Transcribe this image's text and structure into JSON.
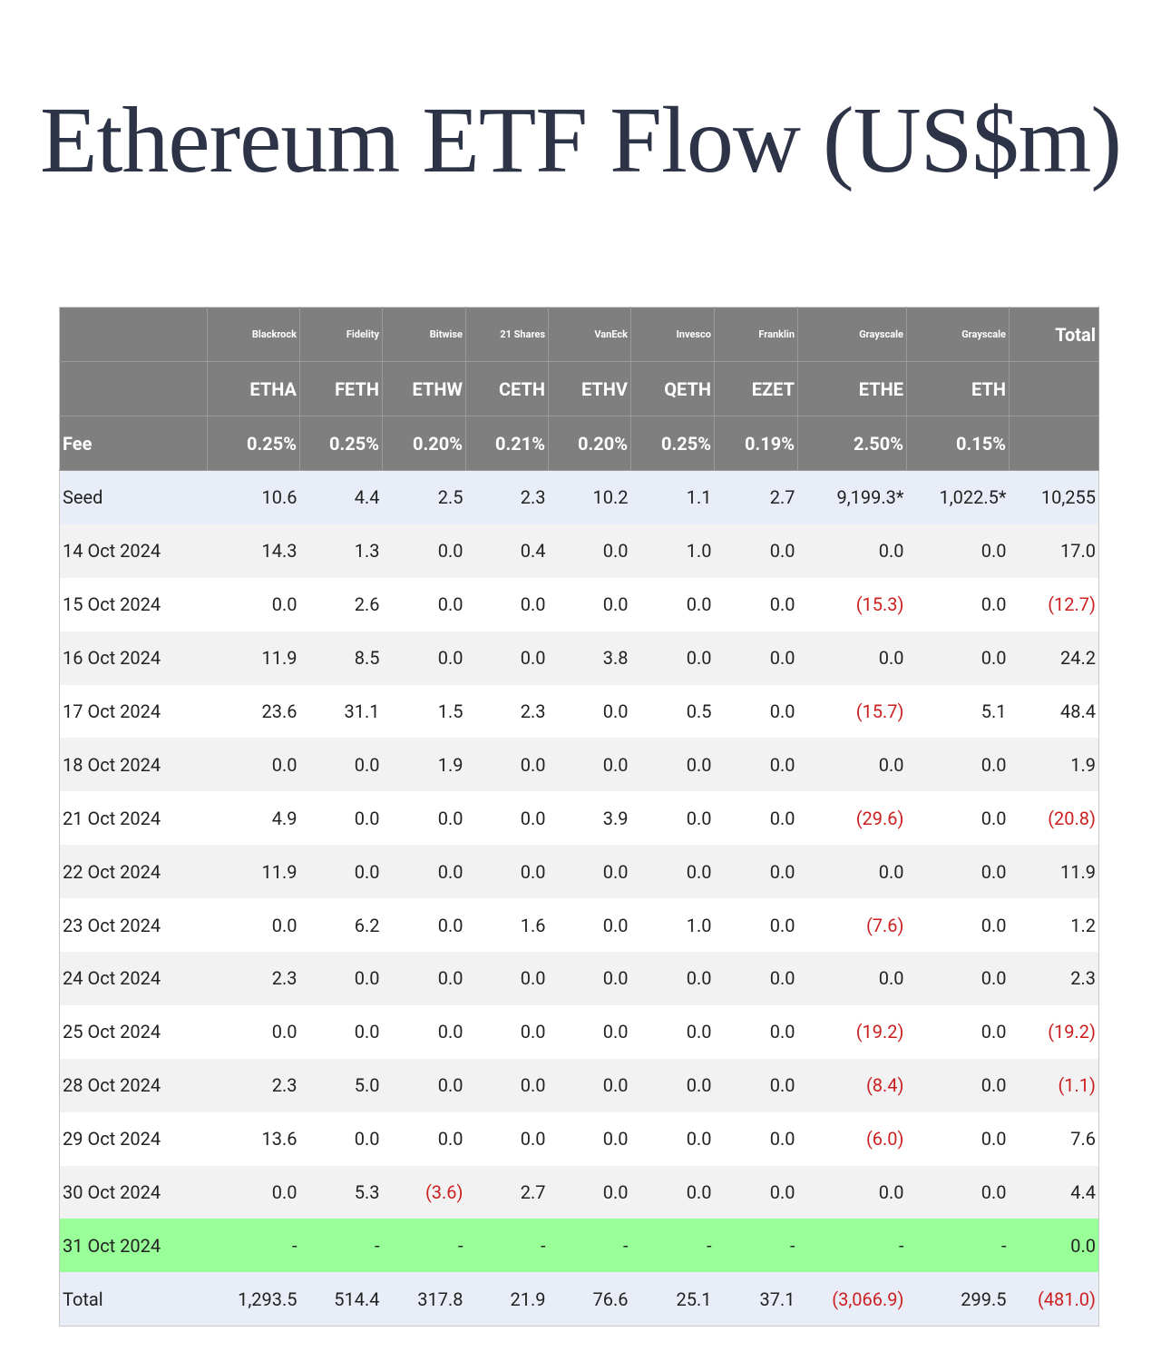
{
  "title": "Ethereum ETF Flow (US$m)",
  "table": {
    "issuers": [
      "Blackrock",
      "Fidelity",
      "Bitwise",
      "21 Shares",
      "VanEck",
      "Invesco",
      "Franklin",
      "Grayscale",
      "Grayscale"
    ],
    "total_header": "Total",
    "tickers": [
      "ETHA",
      "FETH",
      "ETHW",
      "CETH",
      "ETHV",
      "QETH",
      "EZET",
      "ETHE",
      "ETH"
    ],
    "fee_label": "Fee",
    "fees": [
      "0.25%",
      "0.25%",
      "0.20%",
      "0.21%",
      "0.20%",
      "0.25%",
      "0.19%",
      "2.50%",
      "0.15%"
    ],
    "rows": [
      [
        "Seed",
        "10.6",
        "4.4",
        "2.5",
        "2.3",
        "10.2",
        "1.1",
        "2.7",
        "9,199.3*",
        "1,022.5*",
        "10,255"
      ],
      [
        "14 Oct 2024",
        "14.3",
        "1.3",
        "0.0",
        "0.4",
        "0.0",
        "1.0",
        "0.0",
        "0.0",
        "0.0",
        "17.0"
      ],
      [
        "15 Oct 2024",
        "0.0",
        "2.6",
        "0.0",
        "0.0",
        "0.0",
        "0.0",
        "0.0",
        "(15.3)",
        "0.0",
        "(12.7)"
      ],
      [
        "16 Oct 2024",
        "11.9",
        "8.5",
        "0.0",
        "0.0",
        "3.8",
        "0.0",
        "0.0",
        "0.0",
        "0.0",
        "24.2"
      ],
      [
        "17 Oct 2024",
        "23.6",
        "31.1",
        "1.5",
        "2.3",
        "0.0",
        "0.5",
        "0.0",
        "(15.7)",
        "5.1",
        "48.4"
      ],
      [
        "18 Oct 2024",
        "0.0",
        "0.0",
        "1.9",
        "0.0",
        "0.0",
        "0.0",
        "0.0",
        "0.0",
        "0.0",
        "1.9"
      ],
      [
        "21 Oct 2024",
        "4.9",
        "0.0",
        "0.0",
        "0.0",
        "3.9",
        "0.0",
        "0.0",
        "(29.6)",
        "0.0",
        "(20.8)"
      ],
      [
        "22 Oct 2024",
        "11.9",
        "0.0",
        "0.0",
        "0.0",
        "0.0",
        "0.0",
        "0.0",
        "0.0",
        "0.0",
        "11.9"
      ],
      [
        "23 Oct 2024",
        "0.0",
        "6.2",
        "0.0",
        "1.6",
        "0.0",
        "1.0",
        "0.0",
        "(7.6)",
        "0.0",
        "1.2"
      ],
      [
        "24 Oct 2024",
        "2.3",
        "0.0",
        "0.0",
        "0.0",
        "0.0",
        "0.0",
        "0.0",
        "0.0",
        "0.0",
        "2.3"
      ],
      [
        "25 Oct 2024",
        "0.0",
        "0.0",
        "0.0",
        "0.0",
        "0.0",
        "0.0",
        "0.0",
        "(19.2)",
        "0.0",
        "(19.2)"
      ],
      [
        "28 Oct 2024",
        "2.3",
        "5.0",
        "0.0",
        "0.0",
        "0.0",
        "0.0",
        "0.0",
        "(8.4)",
        "0.0",
        "(1.1)"
      ],
      [
        "29 Oct 2024",
        "13.6",
        "0.0",
        "0.0",
        "0.0",
        "0.0",
        "0.0",
        "0.0",
        "(6.0)",
        "0.0",
        "7.6"
      ],
      [
        "30 Oct 2024",
        "0.0",
        "5.3",
        "(3.6)",
        "2.7",
        "0.0",
        "0.0",
        "0.0",
        "0.0",
        "0.0",
        "4.4"
      ],
      [
        "31 Oct 2024",
        "-",
        "-",
        "-",
        "-",
        "-",
        "-",
        "-",
        "-",
        "-",
        "0.0"
      ],
      [
        "Total",
        "1,293.5",
        "514.4",
        "317.8",
        "21.9",
        "76.6",
        "25.1",
        "37.1",
        "(3,066.9)",
        "299.5",
        "(481.0)"
      ]
    ]
  }
}
